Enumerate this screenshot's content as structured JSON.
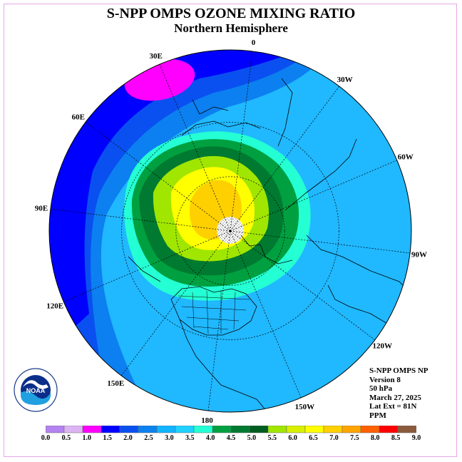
{
  "title": "S-NPP OMPS OZONE MIXING RATIO",
  "subtitle": "Northern Hemisphere",
  "longitude_labels": [
    {
      "text": "90E",
      "lon": 90
    },
    {
      "text": "60E",
      "lon": 60
    },
    {
      "text": "30E",
      "lon": 30
    },
    {
      "text": "0",
      "lon": 0
    },
    {
      "text": "30W",
      "lon": -30
    },
    {
      "text": "60W",
      "lon": -60
    },
    {
      "text": "90W",
      "lon": -90
    },
    {
      "text": "120W",
      "lon": -120
    },
    {
      "text": "150W",
      "lon": -150
    },
    {
      "text": "180",
      "lon": 180
    },
    {
      "text": "150E",
      "lon": 150
    },
    {
      "text": "120E",
      "lon": 120
    }
  ],
  "info": {
    "product": "S-NPP OMPS NP",
    "version": "Version 8",
    "level": "50 hPa",
    "date": "March 27, 2025",
    "lat_ext": "Lat Ext = 81N",
    "units": "PPM"
  },
  "logo": {
    "name": "NOAA",
    "ring_text": "NATIONAL OCEANIC AND ATMOSPHERIC ADMINISTRATION · U.S. DEPARTMENT OF COMMERCE"
  },
  "colorbar": {
    "labels": [
      "0.0",
      "0.5",
      "1.0",
      "1.5",
      "2.0",
      "2.5",
      "3.0",
      "3.5",
      "4.0",
      "4.5",
      "5.0",
      "5.5",
      "6.0",
      "6.5",
      "7.0",
      "7.5",
      "8.0",
      "8.5",
      "9.0"
    ],
    "colors": [
      "#b383ef",
      "#dcb4f3",
      "#ff00ff",
      "#0000ff",
      "#0a50f0",
      "#0c82f0",
      "#10b4ff",
      "#20d0ff",
      "#24ffd4",
      "#00a040",
      "#007a30",
      "#005d20",
      "#a0e600",
      "#d8f000",
      "#ffff00",
      "#ffd000",
      "#ffa500",
      "#ff6000",
      "#ff0000",
      "#8b5a3c"
    ]
  }
}
